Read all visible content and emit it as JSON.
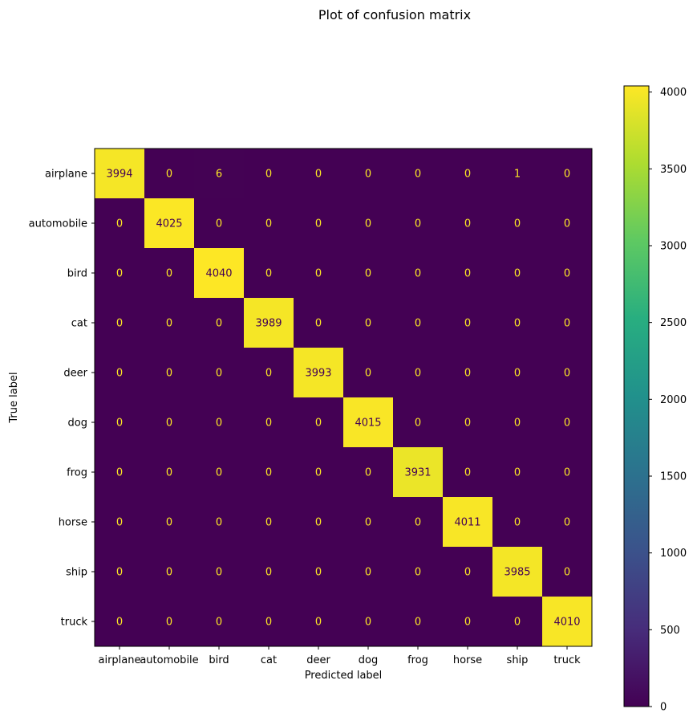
{
  "chart_data": {
    "type": "heatmap",
    "title": "Plot of confusion matrix",
    "xlabel": "Predicted label",
    "ylabel": "True label",
    "categories": [
      "airplane",
      "automobile",
      "bird",
      "cat",
      "deer",
      "dog",
      "frog",
      "horse",
      "ship",
      "truck"
    ],
    "matrix": [
      [
        3994,
        0,
        6,
        0,
        0,
        0,
        0,
        0,
        1,
        0
      ],
      [
        0,
        4025,
        0,
        0,
        0,
        0,
        0,
        0,
        0,
        0
      ],
      [
        0,
        0,
        4040,
        0,
        0,
        0,
        0,
        0,
        0,
        0
      ],
      [
        0,
        0,
        0,
        3989,
        0,
        0,
        0,
        0,
        0,
        0
      ],
      [
        0,
        0,
        0,
        0,
        3993,
        0,
        0,
        0,
        0,
        0
      ],
      [
        0,
        0,
        0,
        0,
        0,
        4015,
        0,
        0,
        0,
        0
      ],
      [
        0,
        0,
        0,
        0,
        0,
        0,
        3931,
        0,
        0,
        0
      ],
      [
        0,
        0,
        0,
        0,
        0,
        0,
        0,
        4011,
        0,
        0
      ],
      [
        0,
        0,
        0,
        0,
        0,
        0,
        0,
        0,
        3985,
        0
      ],
      [
        0,
        0,
        0,
        0,
        0,
        0,
        0,
        0,
        0,
        4010
      ]
    ],
    "colormap": "viridis",
    "colorbar": {
      "range": [
        0,
        4040
      ],
      "ticks": [
        0,
        500,
        1000,
        1500,
        2000,
        2500,
        3000,
        3500,
        4000
      ]
    },
    "text_colors": {
      "high": "#440154",
      "low": "#fde725"
    }
  }
}
